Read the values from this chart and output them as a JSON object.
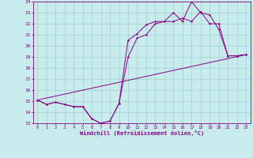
{
  "xlabel": "Windchill (Refroidissement éolien,°C)",
  "xlim": [
    -0.5,
    23.5
  ],
  "ylim": [
    13,
    24
  ],
  "yticks": [
    13,
    14,
    15,
    16,
    17,
    18,
    19,
    20,
    21,
    22,
    23,
    24
  ],
  "xticks": [
    0,
    1,
    2,
    3,
    4,
    5,
    6,
    7,
    8,
    9,
    10,
    11,
    12,
    13,
    14,
    15,
    16,
    17,
    18,
    19,
    20,
    21,
    22,
    23
  ],
  "bg_color": "#c8ecec",
  "grid_color": "#aad4d4",
  "line_color": "#880088",
  "line1_x": [
    0,
    1,
    2,
    3,
    4,
    5,
    6,
    7,
    8,
    9,
    10,
    11,
    12,
    13,
    14,
    15,
    16,
    17,
    18,
    19,
    20,
    21,
    22,
    23
  ],
  "line1_y": [
    15.1,
    14.7,
    14.9,
    14.7,
    14.5,
    14.5,
    13.4,
    13.0,
    13.2,
    14.8,
    20.5,
    21.1,
    21.9,
    22.2,
    22.2,
    23.0,
    22.2,
    24.0,
    23.0,
    22.8,
    21.5,
    19.1,
    19.1,
    19.2
  ],
  "line2_x": [
    0,
    1,
    2,
    3,
    4,
    5,
    6,
    7,
    8,
    9,
    10,
    11,
    12,
    13,
    14,
    15,
    16,
    17,
    18,
    19,
    20,
    21,
    22,
    23
  ],
  "line2_y": [
    15.1,
    14.7,
    14.9,
    14.7,
    14.5,
    14.5,
    13.4,
    13.0,
    13.2,
    14.8,
    19.0,
    20.7,
    21.0,
    22.0,
    22.2,
    22.2,
    22.5,
    22.2,
    23.1,
    22.0,
    22.0,
    19.1,
    19.1,
    19.2
  ],
  "line3_x": [
    0,
    23
  ],
  "line3_y": [
    15.1,
    19.2
  ]
}
